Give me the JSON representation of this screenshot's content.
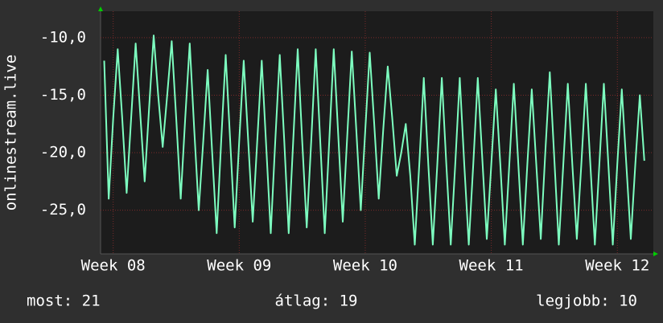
{
  "chart_data": {
    "type": "line",
    "y_label": "onlinestream.live",
    "x": [
      -0.5,
      -0.25,
      0,
      0.25,
      0.5,
      0.75,
      1,
      1.25,
      1.5,
      1.75,
      2,
      2.25,
      2.5,
      2.75,
      3,
      3.25,
      3.5,
      3.75,
      4,
      4.25,
      4.5,
      4.75,
      5,
      5.25,
      5.5,
      5.75,
      6,
      6.25,
      6.5,
      6.75,
      7,
      7.25,
      7.5,
      7.75,
      8,
      8.25,
      8.5,
      8.75,
      9,
      9.25,
      9.5,
      9.75,
      10,
      10.25,
      10.5,
      10.75,
      11,
      11.25,
      11.5,
      11.75,
      12,
      12.25,
      12.5,
      12.75,
      13,
      13.25,
      13.5,
      13.75,
      14,
      14.25,
      14.5,
      14.75,
      15,
      15.25,
      15.5,
      15.75,
      16,
      16.25,
      16.5,
      16.75,
      17,
      17.25,
      17.5,
      17.75,
      18,
      18.25,
      18.5,
      18.75,
      19,
      19.25,
      19.5,
      19.75,
      20,
      20.25,
      20.5,
      20.75,
      21,
      21.25,
      21.5,
      21.75,
      22,
      22.25,
      22.5,
      22.75,
      23,
      23.25,
      23.5,
      23.75,
      24,
      24.25,
      24.5,
      24.75,
      25,
      25.25,
      25.5,
      25.75,
      26,
      26.25,
      26.5,
      26.75,
      27,
      27.25,
      27.5,
      27.75,
      28,
      28.25,
      28.5,
      28.75,
      29,
      29.25,
      29.5
    ],
    "values": [
      -12,
      -24,
      -17,
      -11,
      -17,
      -23.5,
      -17,
      -10.5,
      -16.5,
      -22.5,
      -16,
      -9.8,
      -15,
      -19.5,
      -15,
      -10.3,
      -17,
      -24,
      -17,
      -10.5,
      -18,
      -25,
      -19,
      -12.8,
      -20,
      -27,
      -19,
      -11.5,
      -19,
      -26.5,
      -19,
      -12,
      -19,
      -26,
      -19,
      -12,
      -19.5,
      -27,
      -19,
      -11.5,
      -19,
      -27,
      -19,
      -11,
      -19,
      -26.5,
      -19,
      -11,
      -19,
      -27,
      -19,
      -11,
      -18.5,
      -26,
      -18.5,
      -11.2,
      -18,
      -25,
      -18,
      -11.3,
      -17.5,
      -24,
      -18,
      -12.5,
      -17,
      -22,
      -20,
      -17.5,
      -22,
      -28,
      -21,
      -13.5,
      -21,
      -28,
      -21,
      -13.5,
      -21,
      -28,
      -21,
      -13.5,
      -21,
      -28,
      -21,
      -13.5,
      -20.5,
      -27.5,
      -21,
      -14.5,
      -21,
      -28,
      -21,
      -14,
      -21,
      -28,
      -21,
      -14.5,
      -21,
      -27.5,
      -20,
      -13,
      -20.5,
      -28,
      -21,
      -14,
      -21,
      -27.5,
      -21,
      -14,
      -21,
      -28,
      -21,
      -14,
      -21,
      -28,
      -21,
      -14.5,
      -21,
      -27.5,
      -21,
      -15,
      -20.7
    ],
    "color": "#7dffc0",
    "xlim": [
      -0.7,
      30
    ],
    "xticks": [
      {
        "value": 0,
        "label": "Week 08"
      },
      {
        "value": 7,
        "label": "Week 09"
      },
      {
        "value": 14,
        "label": "Week 10"
      },
      {
        "value": 21,
        "label": "Week 11"
      },
      {
        "value": 28,
        "label": "Week 12"
      }
    ],
    "ylim": [
      -28.8,
      -7.7
    ],
    "yticks": [
      {
        "value": -10,
        "label": "-10,0"
      },
      {
        "value": -15,
        "label": "-15,0"
      },
      {
        "value": -20,
        "label": "-20,0"
      },
      {
        "value": -25,
        "label": "-25,0"
      }
    ],
    "grid": true,
    "footer": [
      "most: 21",
      "átlag: 19",
      "legjobb: 10"
    ]
  }
}
